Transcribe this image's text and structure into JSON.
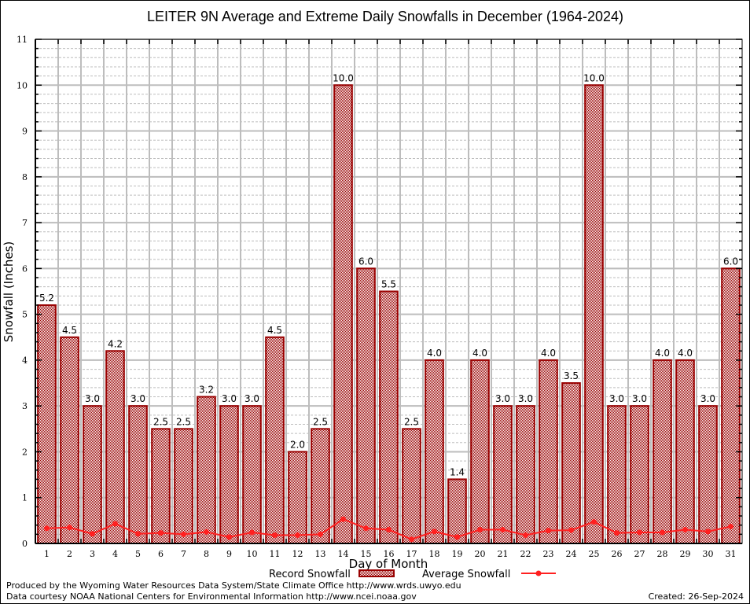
{
  "chart_data": {
    "type": "bar",
    "title": "LEITER 9N Average and Extreme Daily Snowfalls in December (1964-2024)",
    "xlabel": "Day of Month",
    "ylabel": "Snowfall (Inches)",
    "ylim": [
      0,
      11
    ],
    "yticks": [
      0,
      1,
      2,
      3,
      4,
      5,
      6,
      7,
      8,
      9,
      10,
      11
    ],
    "grid": true,
    "categories": [
      "1",
      "2",
      "3",
      "4",
      "5",
      "6",
      "7",
      "8",
      "9",
      "10",
      "11",
      "12",
      "13",
      "14",
      "15",
      "16",
      "17",
      "18",
      "19",
      "20",
      "21",
      "22",
      "23",
      "24",
      "25",
      "26",
      "27",
      "28",
      "29",
      "30",
      "31"
    ],
    "series": [
      {
        "name": "Record Snowfall",
        "type": "bar",
        "color": "#990000",
        "values": [
          5.2,
          4.5,
          3.0,
          4.2,
          3.0,
          2.5,
          2.5,
          3.2,
          3.0,
          3.0,
          4.5,
          2.0,
          2.5,
          10.0,
          6.0,
          5.5,
          2.5,
          4.0,
          1.4,
          4.0,
          3.0,
          3.0,
          4.0,
          3.5,
          10.0,
          3.0,
          3.0,
          4.0,
          4.0,
          3.0,
          6.0
        ],
        "labels": [
          "5.2",
          "4.5",
          "3.0",
          "4.2",
          "3.0",
          "2.5",
          "2.5",
          "3.2",
          "3.0",
          "3.0",
          "4.5",
          "2.0",
          "2.5",
          "10.0",
          "6.0",
          "5.5",
          "2.5",
          "4.0",
          "1.4",
          "4.0",
          "3.0",
          "3.0",
          "4.0",
          "3.5",
          "10.0",
          "3.0",
          "3.0",
          "4.0",
          "4.0",
          "3.0",
          "6.0"
        ]
      },
      {
        "name": "Average Snowfall",
        "type": "line",
        "color": "#ff2020",
        "values": [
          0.33,
          0.35,
          0.21,
          0.43,
          0.21,
          0.23,
          0.2,
          0.25,
          0.14,
          0.24,
          0.18,
          0.18,
          0.2,
          0.53,
          0.33,
          0.3,
          0.09,
          0.26,
          0.14,
          0.3,
          0.3,
          0.18,
          0.28,
          0.29,
          0.47,
          0.23,
          0.24,
          0.24,
          0.3,
          0.26,
          0.37
        ]
      }
    ],
    "legend": {
      "position": "bottom-center"
    }
  },
  "footer": {
    "produced_by": "Produced by the Wyoming Water Resources Data System/State Climate Office http://www.wrds.uwyo.edu",
    "data_courtesy": "Data courtesy NOAA National Centers for Environmental Information http://www.ncei.noaa.gov",
    "created": "Created: 26-Sep-2024"
  }
}
